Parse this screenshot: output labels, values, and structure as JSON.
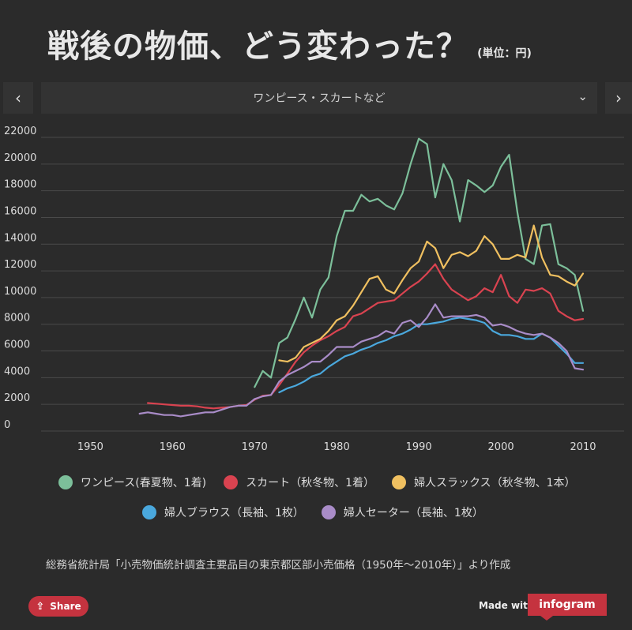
{
  "header": {
    "title": "戦後の物価、どう変わった？",
    "unit": "(単位：円)"
  },
  "nav": {
    "prev_icon": "chevron-left-icon",
    "next_icon": "chevron-right-icon",
    "prev_symbol": "‹",
    "next_symbol": "›",
    "selected_category": "ワンピース・スカートなど",
    "caret_symbol": "⌄"
  },
  "source_note": "総務省統計局「小売物価統計調査主要品目の東京都区部小売価格（1950年〜2010年）」より作成",
  "footer": {
    "share_label": "Share",
    "share_icon_symbol": "⇪",
    "made_with": "Made with",
    "brand": "infogram"
  },
  "chart_data": {
    "type": "line",
    "title": "",
    "xlabel": "",
    "ylabel": "",
    "xlim": [
      1944,
      2015
    ],
    "ylim": [
      0,
      22000
    ],
    "yticks": [
      "0",
      "2000",
      "4000",
      "6000",
      "8000",
      "10000",
      "12000",
      "14000",
      "16000",
      "18000",
      "20000",
      "22000"
    ],
    "xticks": [
      "1950",
      "1960",
      "1970",
      "1980",
      "1990",
      "2000",
      "2010"
    ],
    "grid": true,
    "legend_position": "bottom",
    "series": [
      {
        "name": "ワンピース(春夏物、1着)",
        "color": "#7cbf9a",
        "points": [
          [
            1970,
            3300
          ],
          [
            1971,
            4500
          ],
          [
            1972,
            4000
          ],
          [
            1973,
            6600
          ],
          [
            1974,
            7000
          ],
          [
            1975,
            8400
          ],
          [
            1976,
            10000
          ],
          [
            1977,
            8500
          ],
          [
            1978,
            10600
          ],
          [
            1979,
            11500
          ],
          [
            1980,
            14600
          ],
          [
            1981,
            16500
          ],
          [
            1982,
            16500
          ],
          [
            1983,
            17700
          ],
          [
            1984,
            17200
          ],
          [
            1985,
            17400
          ],
          [
            1986,
            16900
          ],
          [
            1987,
            16600
          ],
          [
            1988,
            17800
          ],
          [
            1989,
            20000
          ],
          [
            1990,
            21900
          ],
          [
            1991,
            21500
          ],
          [
            1992,
            17500
          ],
          [
            1993,
            20000
          ],
          [
            1994,
            18800
          ],
          [
            1995,
            15700
          ],
          [
            1996,
            18800
          ],
          [
            1997,
            18400
          ],
          [
            1998,
            17900
          ],
          [
            1999,
            18400
          ],
          [
            2000,
            19800
          ],
          [
            2001,
            20700
          ],
          [
            2002,
            16400
          ],
          [
            2003,
            12900
          ],
          [
            2004,
            12500
          ],
          [
            2005,
            15400
          ],
          [
            2006,
            15500
          ],
          [
            2007,
            12500
          ],
          [
            2008,
            12200
          ],
          [
            2009,
            11700
          ],
          [
            2010,
            9000
          ]
        ]
      },
      {
        "name": "スカート（秋冬物、1着）",
        "color": "#d94350",
        "points": [
          [
            1957,
            2100
          ],
          [
            1958,
            2050
          ],
          [
            1959,
            2000
          ],
          [
            1960,
            1950
          ],
          [
            1961,
            1900
          ],
          [
            1962,
            1900
          ],
          [
            1963,
            1850
          ],
          [
            1964,
            1750
          ],
          [
            1965,
            1700
          ],
          [
            1966,
            1750
          ],
          [
            1967,
            1800
          ],
          [
            1968,
            1900
          ],
          [
            1969,
            1950
          ],
          [
            1970,
            2350
          ],
          [
            1971,
            2650
          ],
          [
            1972,
            2700
          ],
          [
            1973,
            3450
          ],
          [
            1974,
            4300
          ],
          [
            1975,
            5200
          ],
          [
            1976,
            5900
          ],
          [
            1977,
            6400
          ],
          [
            1978,
            6800
          ],
          [
            1979,
            7100
          ],
          [
            1980,
            7500
          ],
          [
            1981,
            7800
          ],
          [
            1982,
            8600
          ],
          [
            1983,
            8800
          ],
          [
            1984,
            9200
          ],
          [
            1985,
            9600
          ],
          [
            1986,
            9700
          ],
          [
            1987,
            9800
          ],
          [
            1988,
            10300
          ],
          [
            1989,
            10800
          ],
          [
            1990,
            11200
          ],
          [
            1991,
            11800
          ],
          [
            1992,
            12500
          ],
          [
            1993,
            11400
          ],
          [
            1994,
            10600
          ],
          [
            1995,
            10200
          ],
          [
            1996,
            9800
          ],
          [
            1997,
            10100
          ],
          [
            1998,
            10700
          ],
          [
            1999,
            10400
          ],
          [
            2000,
            11700
          ],
          [
            2001,
            10100
          ],
          [
            2002,
            9600
          ],
          [
            2003,
            10600
          ],
          [
            2004,
            10500
          ],
          [
            2005,
            10700
          ],
          [
            2006,
            10300
          ],
          [
            2007,
            9000
          ],
          [
            2008,
            8600
          ],
          [
            2009,
            8300
          ],
          [
            2010,
            8400
          ]
        ]
      },
      {
        "name": "婦人スラックス（秋冬物、1本）",
        "color": "#f0c060",
        "points": [
          [
            1973,
            5300
          ],
          [
            1974,
            5200
          ],
          [
            1975,
            5500
          ],
          [
            1976,
            6300
          ],
          [
            1977,
            6600
          ],
          [
            1978,
            6900
          ],
          [
            1979,
            7500
          ],
          [
            1980,
            8300
          ],
          [
            1981,
            8600
          ],
          [
            1982,
            9400
          ],
          [
            1983,
            10400
          ],
          [
            1984,
            11400
          ],
          [
            1985,
            11600
          ],
          [
            1986,
            10600
          ],
          [
            1987,
            10300
          ],
          [
            1988,
            11300
          ],
          [
            1989,
            12200
          ],
          [
            1990,
            12700
          ],
          [
            1991,
            14200
          ],
          [
            1992,
            13700
          ],
          [
            1993,
            12200
          ],
          [
            1994,
            13200
          ],
          [
            1995,
            13400
          ],
          [
            1996,
            13100
          ],
          [
            1997,
            13500
          ],
          [
            1998,
            14600
          ],
          [
            1999,
            14000
          ],
          [
            2000,
            12900
          ],
          [
            2001,
            12900
          ],
          [
            2002,
            13200
          ],
          [
            2003,
            13000
          ],
          [
            2004,
            15400
          ],
          [
            2005,
            13000
          ],
          [
            2006,
            11700
          ],
          [
            2007,
            11600
          ],
          [
            2008,
            11200
          ],
          [
            2009,
            10900
          ],
          [
            2010,
            11800
          ]
        ]
      },
      {
        "name": "婦人ブラウス（長袖、1枚）",
        "color": "#4aa8dd",
        "points": [
          [
            1973,
            2900
          ],
          [
            1974,
            3200
          ],
          [
            1975,
            3400
          ],
          [
            1976,
            3700
          ],
          [
            1977,
            4100
          ],
          [
            1978,
            4300
          ],
          [
            1979,
            4800
          ],
          [
            1980,
            5200
          ],
          [
            1981,
            5600
          ],
          [
            1982,
            5800
          ],
          [
            1983,
            6100
          ],
          [
            1984,
            6300
          ],
          [
            1985,
            6600
          ],
          [
            1986,
            6800
          ],
          [
            1987,
            7100
          ],
          [
            1988,
            7300
          ],
          [
            1989,
            7600
          ],
          [
            1990,
            8000
          ],
          [
            1991,
            8000
          ],
          [
            1992,
            8100
          ],
          [
            1993,
            8200
          ],
          [
            1994,
            8400
          ],
          [
            1995,
            8500
          ],
          [
            1996,
            8400
          ],
          [
            1997,
            8300
          ],
          [
            1998,
            8100
          ],
          [
            1999,
            7500
          ],
          [
            2000,
            7200
          ],
          [
            2001,
            7200
          ],
          [
            2002,
            7100
          ],
          [
            2003,
            6900
          ],
          [
            2004,
            6900
          ],
          [
            2005,
            7300
          ],
          [
            2006,
            7000
          ],
          [
            2007,
            6400
          ],
          [
            2008,
            5800
          ],
          [
            2009,
            5100
          ],
          [
            2010,
            5100
          ]
        ]
      },
      {
        "name": "婦人セーター（長袖、1枚）",
        "color": "#a98cc8",
        "points": [
          [
            1956,
            1300
          ],
          [
            1957,
            1400
          ],
          [
            1958,
            1300
          ],
          [
            1959,
            1200
          ],
          [
            1960,
            1200
          ],
          [
            1961,
            1100
          ],
          [
            1962,
            1200
          ],
          [
            1963,
            1300
          ],
          [
            1964,
            1400
          ],
          [
            1965,
            1400
          ],
          [
            1966,
            1600
          ],
          [
            1967,
            1800
          ],
          [
            1968,
            1900
          ],
          [
            1969,
            1900
          ],
          [
            1970,
            2400
          ],
          [
            1971,
            2600
          ],
          [
            1972,
            2700
          ],
          [
            1973,
            3700
          ],
          [
            1974,
            4200
          ],
          [
            1975,
            4500
          ],
          [
            1976,
            4800
          ],
          [
            1977,
            5200
          ],
          [
            1978,
            5200
          ],
          [
            1979,
            5700
          ],
          [
            1980,
            6300
          ],
          [
            1981,
            6300
          ],
          [
            1982,
            6300
          ],
          [
            1983,
            6700
          ],
          [
            1984,
            6900
          ],
          [
            1985,
            7100
          ],
          [
            1986,
            7500
          ],
          [
            1987,
            7300
          ],
          [
            1988,
            8100
          ],
          [
            1989,
            8300
          ],
          [
            1990,
            7800
          ],
          [
            1991,
            8500
          ],
          [
            1992,
            9500
          ],
          [
            1993,
            8500
          ],
          [
            1994,
            8600
          ],
          [
            1995,
            8600
          ],
          [
            1996,
            8600
          ],
          [
            1997,
            8700
          ],
          [
            1998,
            8500
          ],
          [
            1999,
            7900
          ],
          [
            2000,
            8000
          ],
          [
            2001,
            7800
          ],
          [
            2002,
            7500
          ],
          [
            2003,
            7300
          ],
          [
            2004,
            7200
          ],
          [
            2005,
            7300
          ],
          [
            2006,
            7000
          ],
          [
            2007,
            6600
          ],
          [
            2008,
            6000
          ],
          [
            2009,
            4700
          ],
          [
            2010,
            4600
          ]
        ]
      }
    ]
  }
}
